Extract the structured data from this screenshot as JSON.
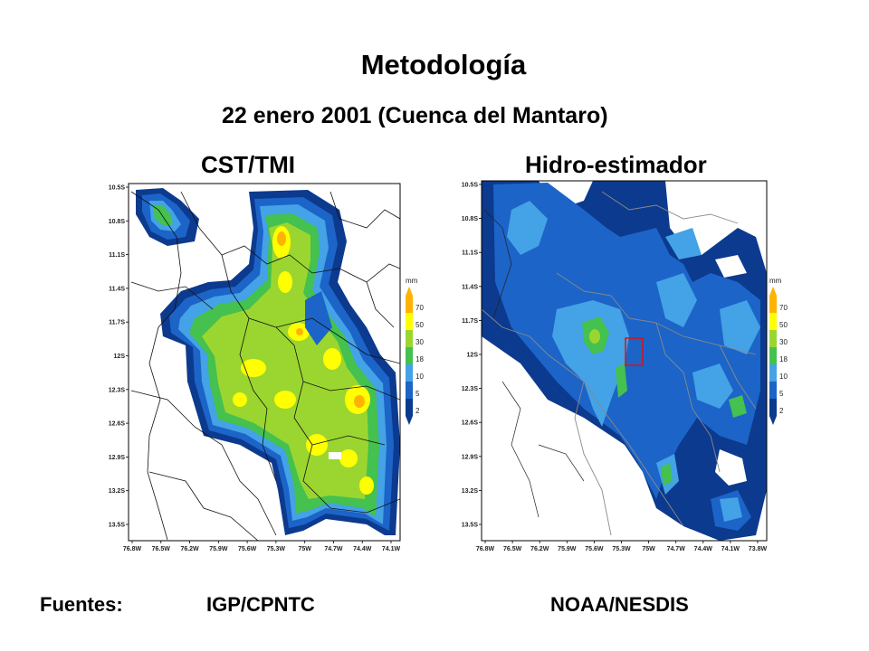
{
  "slide": {
    "title": "Metodología",
    "subtitle": "22 enero 2001 (Cuenca del Mantaro)",
    "left_title": "CST/TMI",
    "right_title": "Hidro-estimador",
    "sources_label": "Fuentes:",
    "source_left": "IGP/CPNTC",
    "source_right": "NOAA/NESDIS"
  },
  "map_axes": {
    "lat_ticks": [
      "10.5S",
      "10.8S",
      "11.1S",
      "11.4S",
      "11.7S",
      "12S",
      "12.3S",
      "12.6S",
      "12.9S",
      "13.2S",
      "13.5S"
    ],
    "lon_ticks_left": [
      "76.8W",
      "76.5W",
      "76.2W",
      "75.9W",
      "75.6W",
      "75.3W",
      "75W",
      "74.7W",
      "74.4W",
      "74.1W"
    ],
    "lon_ticks_right": [
      "76.8W",
      "76.5W",
      "76.2W",
      "75.9W",
      "75.6W",
      "75.3W",
      "75W",
      "74.7W",
      "74.4W",
      "74.1W",
      "73.8W"
    ]
  },
  "legend": {
    "unit": "mm",
    "levels": [
      "70",
      "50",
      "30",
      "18",
      "10",
      "5",
      "2"
    ],
    "colors": [
      "#ffb300",
      "#ffff00",
      "#9bd630",
      "#44c14e",
      "#44a2e6",
      "#1c64c8",
      "#0c3a8e"
    ]
  }
}
